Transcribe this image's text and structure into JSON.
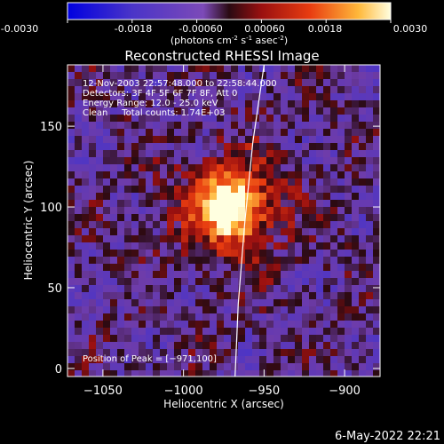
{
  "colorbar": {
    "tick_labels": [
      "-0.0030",
      "-0.0018",
      "-0.00060",
      "0.00060",
      "0.0018",
      "0.0030"
    ],
    "units_label": "(photons cm",
    "units_exp1": "-2",
    "units_mid": " s",
    "units_exp2": "-1",
    "units_end": " asec",
    "units_exp3": "-2",
    "units_close": ")"
  },
  "chart_data": {
    "type": "heatmap",
    "title": "Reconstructed RHESSI Image",
    "xlabel": "Heliocentric X (arcsec)",
    "ylabel": "Heliocentric Y (arcsec)",
    "xlim": [
      -1072,
      -878
    ],
    "ylim": [
      -5,
      188
    ],
    "x_ticks": [
      -1050,
      -1000,
      -950,
      -900
    ],
    "y_ticks": [
      0,
      50,
      100,
      150
    ],
    "x_tick_labels": [
      "−1050",
      "−1000",
      "−950",
      "−900"
    ],
    "y_tick_labels": [
      "0",
      "50",
      "100",
      "150"
    ],
    "color_range": [
      -0.003,
      0.003
    ],
    "annotations": [
      "12-Nov-2003 22:57:48.000 to 22:58:44.000",
      "Detectors: 3F 4F 5F 6F 7F 8F, Att 0",
      "Energy Range: 12.0 - 25.0 keV",
      "Clean     Total counts: 1.74E+03"
    ],
    "peak_label": "Position of Peak = [−971,100]",
    "peak": [
      -971,
      100
    ],
    "limb_curve": [
      [
        -968,
        -5
      ],
      [
        -966,
        40
      ],
      [
        -962,
        90
      ],
      [
        -957,
        140
      ],
      [
        -950,
        188
      ]
    ]
  },
  "footer": {
    "date": "6-May-2022 22:21"
  }
}
